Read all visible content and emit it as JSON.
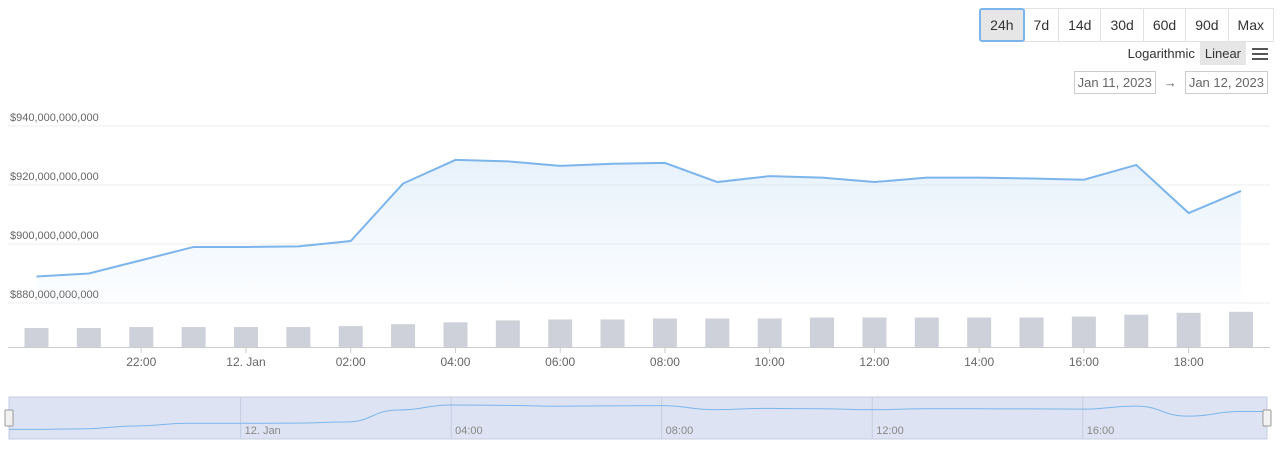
{
  "range_buttons": [
    "24h",
    "7d",
    "14d",
    "30d",
    "60d",
    "90d",
    "Max"
  ],
  "active_range": "24h",
  "scale_buttons": {
    "log": "Logarithmic",
    "linear": "Linear"
  },
  "active_scale": "Linear",
  "date_range": {
    "from": "Jan 11, 2023",
    "arrow": "→",
    "to": "Jan 12, 2023"
  },
  "colors": {
    "line": "#7cb5ec",
    "volume": "#ced1d9",
    "navigator_fill": "#dde3f2"
  },
  "chart_data": {
    "type": "line",
    "title": "",
    "xlabel": "",
    "ylabel": "",
    "y_ticks": [
      "$880,000,000,000",
      "$900,000,000,000",
      "$920,000,000,000",
      "$940,000,000,000"
    ],
    "ylim": [
      880000000000,
      940000000000
    ],
    "x_ticks": [
      {
        "label": "22:00",
        "hour": 22
      },
      {
        "label": "12. Jan",
        "hour": 24
      },
      {
        "label": "02:00",
        "hour": 26
      },
      {
        "label": "04:00",
        "hour": 28
      },
      {
        "label": "06:00",
        "hour": 30
      },
      {
        "label": "08:00",
        "hour": 32
      },
      {
        "label": "10:00",
        "hour": 34
      },
      {
        "label": "12:00",
        "hour": 36
      },
      {
        "label": "14:00",
        "hour": 38
      },
      {
        "label": "16:00",
        "hour": 40
      },
      {
        "label": "18:00",
        "hour": 42
      }
    ],
    "x_range_hours": [
      19.6,
      43.5
    ],
    "grid": true,
    "legend": "none",
    "series": [
      {
        "x_hours": [
          20,
          21,
          22,
          23,
          24,
          25,
          26,
          27,
          28,
          29,
          30,
          31,
          32,
          33,
          34,
          35,
          36,
          37,
          38,
          39,
          40,
          41,
          42,
          43
        ],
        "values": [
          889000000000,
          890000000000,
          894500000000,
          899000000000,
          899000000000,
          899200000000,
          901000000000,
          920500000000,
          928500000000,
          928000000000,
          926500000000,
          927200000000,
          927500000000,
          921000000000,
          923000000000,
          922500000000,
          921000000000,
          922500000000,
          922500000000,
          922200000000,
          921800000000,
          926800000000,
          910500000000,
          918000000000
        ]
      }
    ],
    "volume": [
      20,
      20,
      21,
      21,
      21,
      21,
      22,
      24,
      26,
      28,
      29,
      29,
      30,
      30,
      30,
      31,
      31,
      31,
      31,
      31,
      32,
      34,
      36,
      37
    ],
    "navigator": {
      "labels": [
        {
          "label": "12. Jan",
          "hour": 24
        },
        {
          "label": "04:00",
          "hour": 28
        },
        {
          "label": "08:00",
          "hour": 32
        },
        {
          "label": "12:00",
          "hour": 36
        },
        {
          "label": "16:00",
          "hour": 40
        }
      ]
    }
  }
}
